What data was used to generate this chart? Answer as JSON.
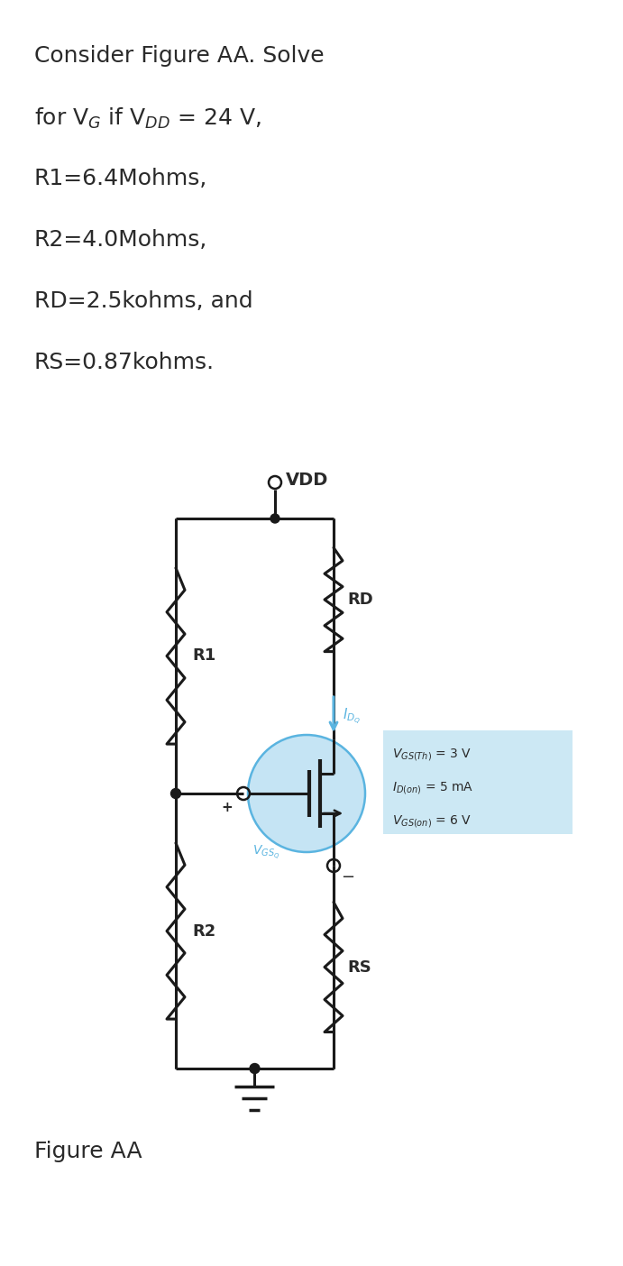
{
  "figure_label": "Figure AA",
  "vdd_label": "VDD",
  "r1_label": "R1",
  "r2_label": "R2",
  "rd_label": "RD",
  "rs_label": "RS",
  "idq_label": "$I_{D_Q}$",
  "vgsq_label": "$V_{GS_Q}$",
  "plus_label": "+",
  "minus_label": "−",
  "box_text_line1": "$V_{GS(Th)}$ = 3 V",
  "box_text_line2": "$I_{D(on)}$ = 5 mA",
  "box_text_line3": "$V_{GS(on)}$ = 6 V",
  "bg_color": "#ffffff",
  "line_color": "#1a1a1a",
  "blue_color": "#5ab4e0",
  "box_bg_color": "#cce8f4",
  "text_color": "#2a2a2a",
  "fig_width": 6.91,
  "fig_height": 14.04,
  "problem_line1": "Consider Figure AA. Solve",
  "problem_line2": "for V$_G$ if V$_{DD}$ = 24 V,",
  "problem_line3": "R1=6.4Mohms,",
  "problem_line4": "R2=4.0Mohms,",
  "problem_line5": "RD=2.5kohms, and",
  "problem_line6": "RS=0.87kohms."
}
